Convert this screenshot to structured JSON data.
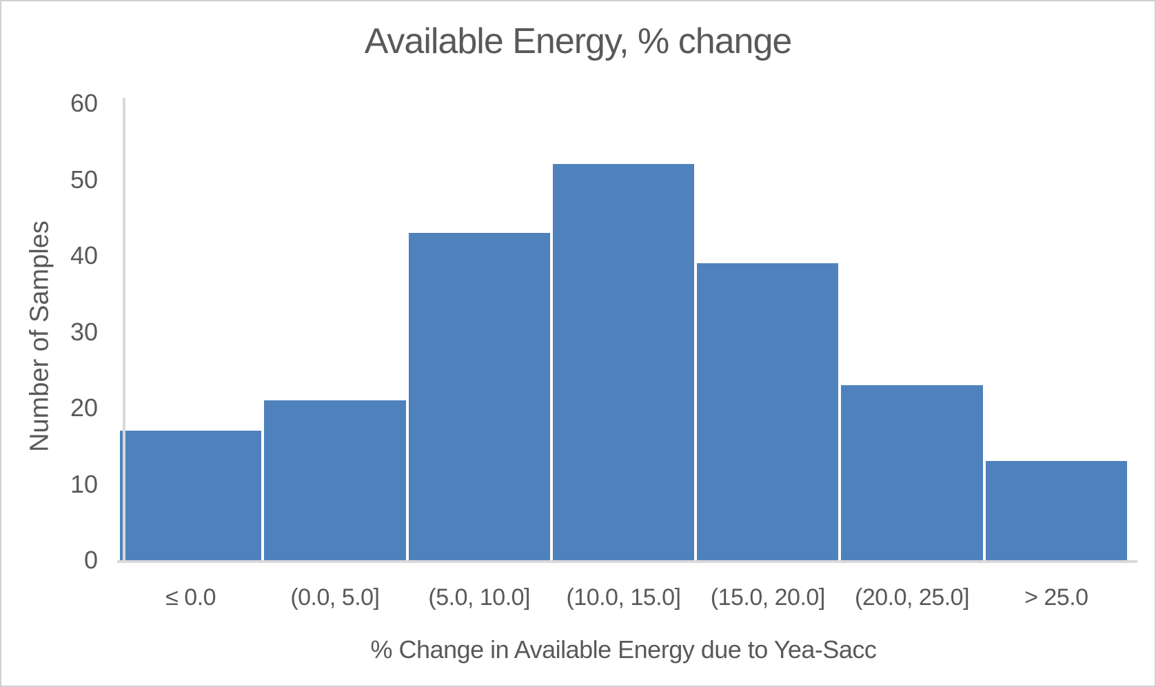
{
  "chart_data": {
    "type": "bar",
    "title": "Available Energy, % change",
    "xlabel": "% Change in Available Energy due to Yea-Sacc",
    "ylabel": "Number of Samples",
    "categories": [
      "≤ 0.0",
      "(0.0, 5.0]",
      "(5.0, 10.0]",
      "(10.0, 15.0]",
      "(15.0, 20.0]",
      "(20.0, 25.0]",
      "> 25.0"
    ],
    "values": [
      17,
      21,
      43,
      52,
      39,
      23,
      13
    ],
    "ylim": [
      0,
      60
    ],
    "yticks": [
      "0",
      "10",
      "20",
      "30",
      "40",
      "50",
      "60"
    ],
    "grid": false,
    "legend": false,
    "bar_color": "#4F81BD",
    "text_color": "#595959",
    "axis_line_color": "#D9D9D9"
  }
}
